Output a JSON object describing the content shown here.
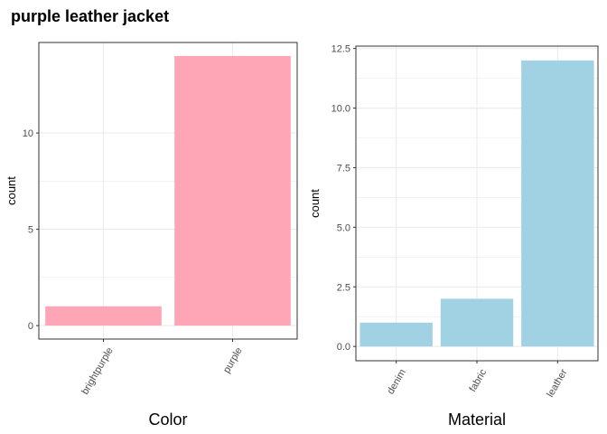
{
  "title": "purple leather jacket",
  "colors": {
    "color_bar": "#ffa6b6",
    "material_bar": "#a0d2e3",
    "grid": "#ebebeb",
    "panel_border": "#333333"
  },
  "chart_data": [
    {
      "type": "bar",
      "categories": [
        "brightpurple",
        "purple"
      ],
      "values": [
        1,
        14
      ],
      "xlabel": "Color",
      "ylabel": "count",
      "ylim": [
        -0.7,
        14.7
      ],
      "yticks": [
        0,
        5,
        10
      ],
      "ytick_labels": [
        "0",
        "5",
        "10"
      ],
      "grid": true,
      "bar_color": "#ffa6b6"
    },
    {
      "type": "bar",
      "categories": [
        "denim",
        "fabric",
        "leather"
      ],
      "values": [
        1,
        2,
        12
      ],
      "xlabel": "Material",
      "ylabel": "count",
      "ylim": [
        -0.6,
        12.6
      ],
      "yticks": [
        0,
        2.5,
        5,
        7.5,
        10,
        12.5
      ],
      "ytick_labels": [
        "0.0",
        "2.5",
        "5.0",
        "7.5",
        "10.0",
        "12.5"
      ],
      "grid": true,
      "bar_color": "#a0d2e3"
    }
  ]
}
